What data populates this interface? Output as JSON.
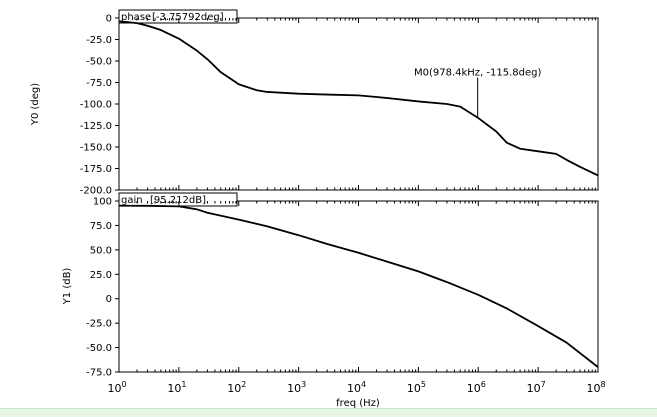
{
  "chart_data": [
    {
      "type": "line",
      "title": "",
      "trace_label": "phase",
      "trace_value": "[-3.75792deg]",
      "ylabel": "Y0 (deg)",
      "xlabel": "",
      "xscale": "log",
      "xlim": [
        1,
        100000000
      ],
      "ylim": [
        -200,
        0
      ],
      "yticks": [
        "0",
        "-25.0",
        "-50.0",
        "-75.0",
        "-100.0",
        "-125.0",
        "-150.0",
        "-175.0",
        "-200.0"
      ],
      "x": [
        1,
        2,
        3,
        5,
        10,
        20,
        30,
        50,
        100,
        200,
        300,
        1000,
        3000,
        10000,
        30000,
        100000,
        300000,
        500000,
        978400,
        2000000,
        3000000,
        5000000,
        10000000,
        20000000,
        30000000,
        50000000,
        100000000
      ],
      "y": [
        -3.76,
        -6,
        -9,
        -14,
        -24,
        -38,
        -48,
        -63,
        -77,
        -84,
        -86,
        -88,
        -89,
        -90,
        -93,
        -97,
        -100,
        -103,
        -115.8,
        -132,
        -145,
        -152,
        -155,
        -158,
        -165,
        -173,
        -183
      ],
      "marker": {
        "x": 978400,
        "y": -115.8,
        "label": "M0(978.4kHz, -115.8deg)"
      }
    },
    {
      "type": "line",
      "title": "",
      "trace_label": "gain",
      "trace_value": "[95.212dB]",
      "ylabel": "Y1 (dB)",
      "xlabel": "freq (Hz)",
      "xscale": "log",
      "xlim": [
        1,
        100000000
      ],
      "ylim": [
        -75,
        100
      ],
      "yticks": [
        "100",
        "75.0",
        "50.0",
        "25.0",
        "0",
        "-25.0",
        "-50.0",
        "-75.0"
      ],
      "x": [
        1,
        3,
        10,
        20,
        30,
        100,
        300,
        1000,
        3000,
        10000,
        30000,
        100000,
        300000,
        1000000,
        3000000,
        10000000,
        30000000,
        100000000
      ],
      "y": [
        95.2,
        95.1,
        94.5,
        91.5,
        88,
        81,
        74,
        65,
        56,
        47,
        38,
        28,
        17,
        4,
        -10,
        -28,
        -45,
        -70
      ]
    }
  ],
  "x_axis": {
    "label": "freq (Hz)",
    "ticks": [
      {
        "base": "10",
        "exp": "0"
      },
      {
        "base": "10",
        "exp": "1"
      },
      {
        "base": "10",
        "exp": "2"
      },
      {
        "base": "10",
        "exp": "3"
      },
      {
        "base": "10",
        "exp": "4"
      },
      {
        "base": "10",
        "exp": "5"
      },
      {
        "base": "10",
        "exp": "6"
      },
      {
        "base": "10",
        "exp": "7"
      },
      {
        "base": "10",
        "exp": "8"
      }
    ]
  },
  "colors": {
    "trace": "#000000",
    "frame": "#000000",
    "background": "#ffffff"
  }
}
